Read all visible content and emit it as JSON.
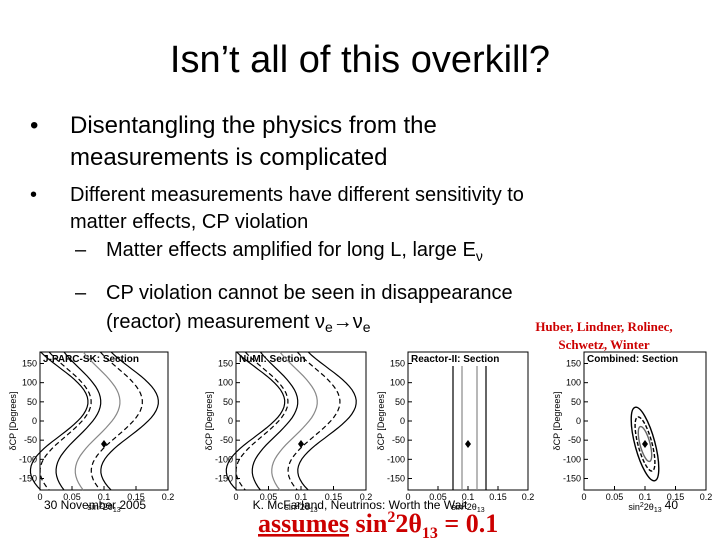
{
  "title": "Isn’t all of this overkill?",
  "bullets": [
    {
      "lines": [
        "Disentangling the physics from the",
        "measurements is complicated"
      ]
    },
    {
      "lines": [
        "Different measurements have different sensitivity to",
        "matter effects, CP violation"
      ],
      "sub": [
        {
          "text": "Matter effects amplified for long L, large E",
          "subscript": "ν"
        },
        {
          "text": "CP violation cannot be seen in disappearance"
        },
        {
          "parts": [
            "(reactor) measurement ν",
            "e",
            "→ν",
            "e"
          ]
        }
      ]
    }
  ],
  "citation": [
    "Huber, Lindner, Rolinec,",
    "Schwetz, Winter"
  ],
  "plots": {
    "panels": [
      "J-PARC-SK: Section",
      "NuMI: Section",
      "Reactor-II: Section",
      "Combined: Section"
    ],
    "ylabel": "δCP [Degrees]",
    "xlabel": [
      "sin",
      "2",
      "2θ",
      "13"
    ],
    "ylim": [
      -180,
      180
    ],
    "yticks": [
      150,
      100,
      50,
      0,
      -50,
      -100,
      -150
    ],
    "xlim": [
      0,
      0.2
    ],
    "xticks": [
      0,
      0.05,
      0.1,
      0.15,
      0.2
    ]
  },
  "assumption": [
    "assumes",
    " sin",
    "2",
    "2θ",
    "13",
    " = 0.1"
  ],
  "footer": {
    "date": "30 November 2005",
    "author": "K. McFarland, Neutrinos: Worth the Wait",
    "page": "40"
  }
}
